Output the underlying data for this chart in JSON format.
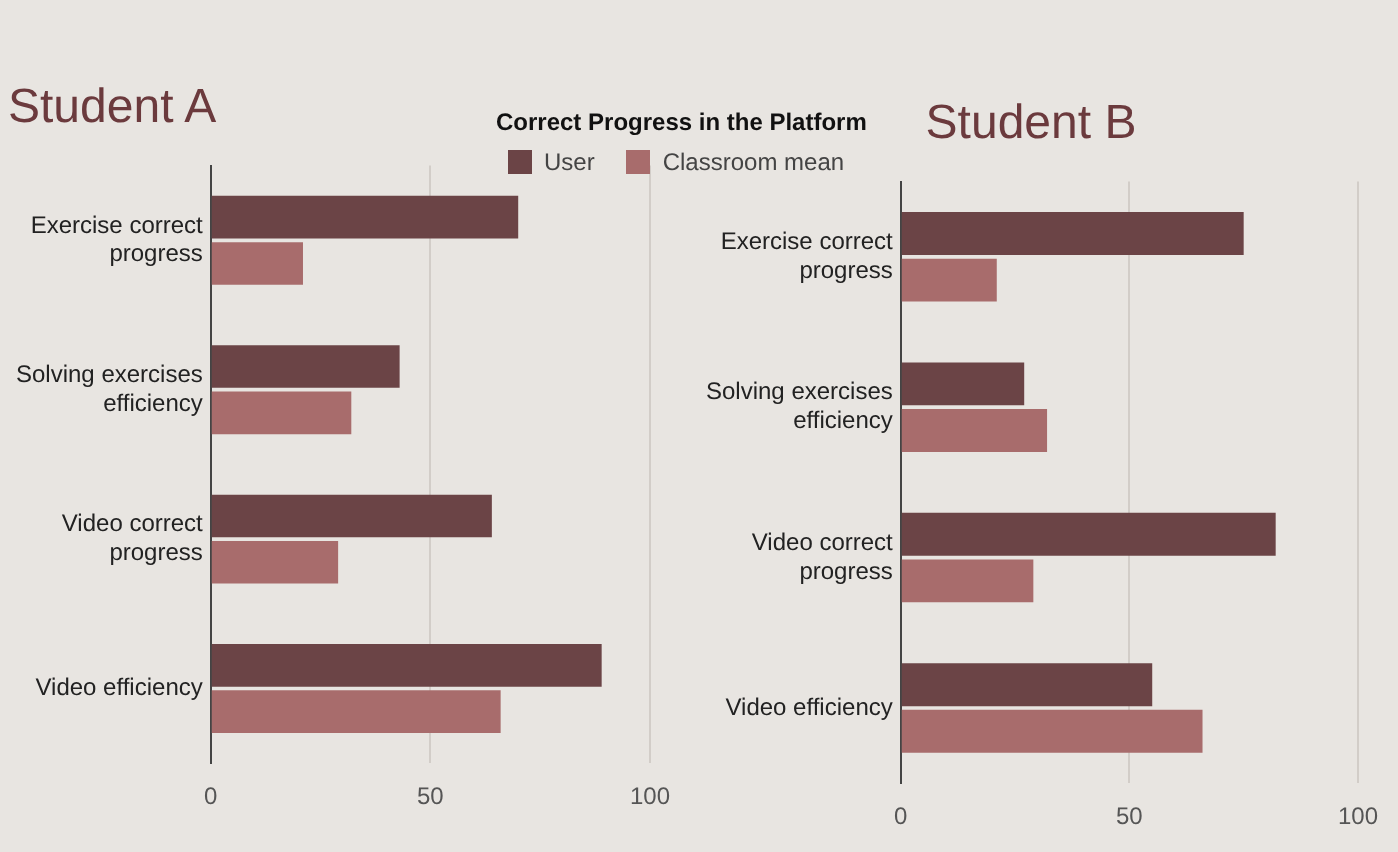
{
  "chart_data": [
    {
      "type": "bar",
      "orientation": "horizontal",
      "title": "Student A",
      "legend_title": "Correct Progress in the Platform",
      "legend": "top right",
      "categories": [
        "Exercise correct progress",
        "Solving exercises efficiency",
        "Video correct progress",
        "Video efficiency"
      ],
      "series": [
        {
          "name": "User",
          "color": "#6b4446",
          "values": [
            70,
            43,
            64,
            89
          ]
        },
        {
          "name": "Classroom mean",
          "color": "#a86c6c",
          "values": [
            21,
            32,
            29,
            66
          ]
        }
      ],
      "xlim": [
        0,
        100
      ],
      "xticks": [
        0,
        50,
        100
      ],
      "grid": "x"
    },
    {
      "type": "bar",
      "orientation": "horizontal",
      "title": "Student B",
      "categories": [
        "Exercise correct progress",
        "Solving exercises efficiency",
        "Video correct progress",
        "Video efficiency"
      ],
      "series": [
        {
          "color": "#6b4446",
          "values": [
            75,
            27,
            82,
            55
          ]
        },
        {
          "color": "#a86c6c",
          "values": [
            21,
            32,
            29,
            66
          ]
        }
      ],
      "xlim": [
        0,
        100
      ],
      "xticks": [
        0,
        50,
        100
      ],
      "grid": "x"
    }
  ]
}
